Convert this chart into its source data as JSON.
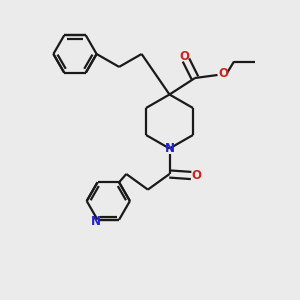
{
  "bg_color": "#ebebeb",
  "bond_color": "#1a1a1a",
  "N_color": "#2222cc",
  "O_color": "#cc2222",
  "line_width": 1.6,
  "figsize": [
    3.0,
    3.0
  ],
  "dpi": 100,
  "xlim": [
    0,
    10
  ],
  "ylim": [
    0,
    10
  ]
}
